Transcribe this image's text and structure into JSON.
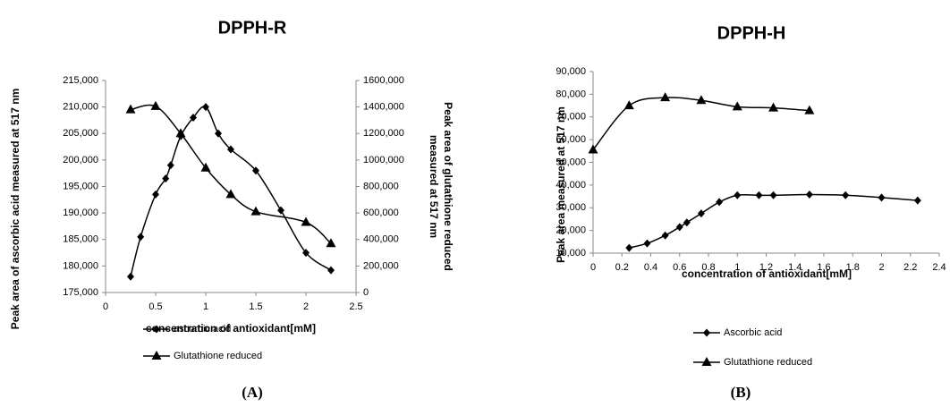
{
  "chart_data": [
    {
      "type": "line",
      "title": "DPPH-R",
      "panel_label": "(A)",
      "xlabel": "concentration of antioxidant[mM]",
      "ylabel": "Peak area of ascorbic acid measured at 517 nm",
      "y2label": [
        "Peak area of glutathione reduced",
        "measured at 517 nm"
      ],
      "xlim": [
        0,
        2.5
      ],
      "xticks": [
        0,
        0.5,
        1,
        1.5,
        2,
        2.5
      ],
      "ylim": [
        175000,
        215000
      ],
      "yticks": [
        {
          "value": 175000,
          "label": "175,000"
        },
        {
          "value": 180000,
          "label": "180,000"
        },
        {
          "value": 185000,
          "label": "185,000"
        },
        {
          "value": 190000,
          "label": "190,000"
        },
        {
          "value": 195000,
          "label": "195,000"
        },
        {
          "value": 200000,
          "label": "200,000"
        },
        {
          "value": 205000,
          "label": "205,000"
        },
        {
          "value": 210000,
          "label": "210,000"
        },
        {
          "value": 215000,
          "label": "215,000"
        }
      ],
      "y2lim": [
        0,
        1600000
      ],
      "y2ticks": [
        0,
        {
          "value": 200000,
          "label": "200,000"
        },
        {
          "value": 400000,
          "label": "400,000"
        },
        {
          "value": 600000,
          "label": "600,000"
        },
        {
          "value": 800000,
          "label": "800,000"
        },
        {
          "value": 1000000,
          "label": "1000,000"
        },
        {
          "value": 1200000,
          "label": "1200,000"
        },
        {
          "value": 1400000,
          "label": "1400,000"
        },
        {
          "value": 1600000,
          "label": "1600,000"
        }
      ],
      "grid": false,
      "legend": "bottom",
      "series": [
        {
          "name": "ascorbic acid",
          "color": "#000000",
          "marker": "diamond",
          "x": [
            0.25,
            0.35,
            0.5,
            0.6,
            0.65,
            0.75,
            0.875,
            1.0,
            1.125,
            1.25,
            1.5,
            1.75,
            2.0,
            2.25
          ],
          "values": [
            178000,
            185500,
            193500,
            196500,
            199000,
            204500,
            208000,
            210000,
            205000,
            202000,
            198000,
            190500,
            182500,
            179200
          ]
        },
        {
          "name": "Glutathione reduced",
          "color": "#000000",
          "marker": "triangle",
          "axis": "y2",
          "x": [
            0.25,
            0.5,
            0.75,
            1.0,
            1.25,
            1.5,
            2.0,
            2.25
          ],
          "values": [
            1380000,
            1405000,
            1200000,
            940000,
            740000,
            610000,
            530000,
            370000
          ]
        }
      ]
    },
    {
      "type": "line",
      "title": "DPPH-H",
      "panel_label": "(B)",
      "xlabel": "concentration of antioxidant[mM]",
      "ylabel": "Peak area measured at 517 nm",
      "xlim": [
        0,
        2.4
      ],
      "xticks": [
        0,
        0.2,
        0.4,
        0.6,
        0.8,
        1,
        1.2,
        1.4,
        1.6,
        1.8,
        2,
        2.2,
        2.4
      ],
      "ylim": [
        10000,
        90000
      ],
      "yticks": [
        {
          "value": 10000,
          "label": "10,000"
        },
        {
          "value": 20000,
          "label": "20,000"
        },
        {
          "value": 30000,
          "label": "30,000"
        },
        {
          "value": 40000,
          "label": "40,000"
        },
        {
          "value": 50000,
          "label": "50,000"
        },
        {
          "value": 60000,
          "label": "60,000"
        },
        {
          "value": 70000,
          "label": "70,000"
        },
        {
          "value": 80000,
          "label": "80,000"
        },
        {
          "value": 90000,
          "label": "90,000"
        }
      ],
      "grid": false,
      "legend": "bottom",
      "series": [
        {
          "name": "Ascorbic acid",
          "color": "#000000",
          "marker": "diamond",
          "x": [
            0.25,
            0.375,
            0.5,
            0.6,
            0.65,
            0.75,
            0.875,
            1.0,
            1.15,
            1.25,
            1.5,
            1.75,
            2.0,
            2.25
          ],
          "values": [
            12300,
            14300,
            17800,
            21500,
            23500,
            27500,
            32500,
            35500,
            35500,
            35500,
            35800,
            35500,
            34500,
            33200
          ]
        },
        {
          "name": "Glutathione reduced",
          "color": "#000000",
          "marker": "triangle",
          "x": [
            0,
            0.25,
            0.5,
            0.75,
            1.0,
            1.25,
            1.5
          ],
          "values": [
            55500,
            75000,
            78500,
            77300,
            74500,
            74000,
            72800
          ]
        }
      ]
    }
  ]
}
